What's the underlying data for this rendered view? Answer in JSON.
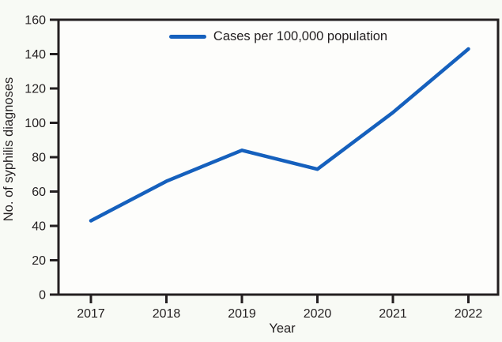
{
  "chart": {
    "legend_label": "Cases per 100,000 population",
    "colors": {
      "line": "#1560bd",
      "axis": "#231f20",
      "plot_background": "#fdfdfb",
      "page_background": "#f8faf5"
    }
  },
  "chart_data": {
    "type": "line",
    "title": "",
    "xlabel": "Year",
    "ylabel": "No. of syphilis diagnoses",
    "x": [
      "2017",
      "2018",
      "2019",
      "2020",
      "2021",
      "2022"
    ],
    "series": [
      {
        "name": "Cases per 100,000 population",
        "values": [
          43,
          66,
          84,
          73,
          106,
          143
        ]
      }
    ],
    "ylim": [
      0,
      160
    ],
    "yticks": [
      0,
      20,
      40,
      60,
      80,
      100,
      120,
      140,
      160
    ],
    "grid": false,
    "legend_position": "top-center"
  }
}
